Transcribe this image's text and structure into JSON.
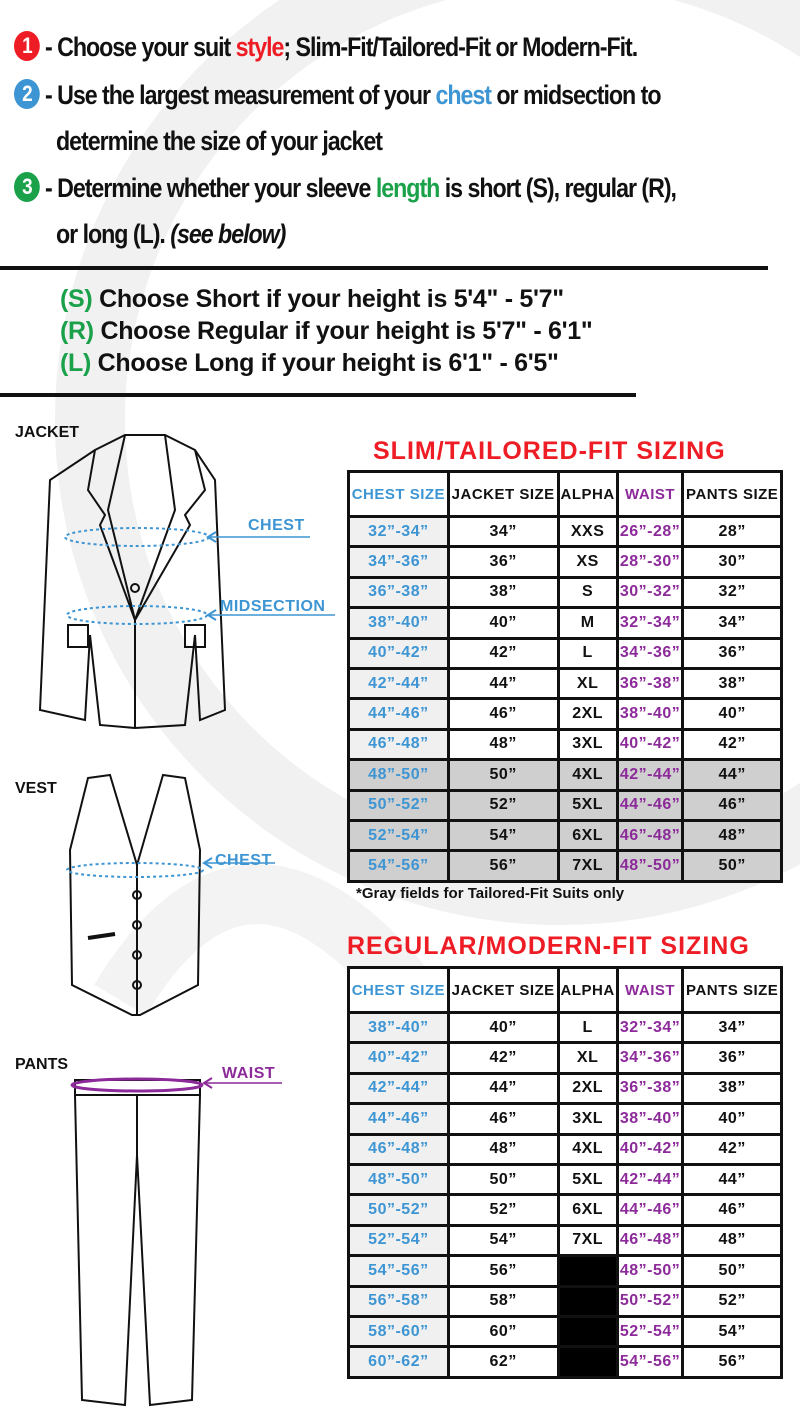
{
  "instructions": [
    {
      "num": "1",
      "color": "#ee1c24",
      "before": "- Choose your suit ",
      "highlight": "style",
      "after": "; Slim-Fit/Tailored-Fit or Modern-Fit.",
      "highlight_color": "#ee1c24"
    },
    {
      "num": "2",
      "color": "#3d95d3",
      "before": "- Use the largest measurement of your ",
      "highlight": "chest",
      "after": " or midsection to",
      "line2": "determine the size of your jacket",
      "highlight_color": "#3d95d3"
    },
    {
      "num": "3",
      "color": "#1aa14a",
      "before": "- Determine whether your sleeve ",
      "highlight": "length",
      "after": " is short (S), regular (R),",
      "line2": "or long (L). ",
      "line2_italic": "(see below)",
      "highlight_color": "#1aa14a"
    }
  ],
  "heights": [
    {
      "code": "(S)",
      "text": " Choose Short if your height is 5'4\" - 5'7\""
    },
    {
      "code": "(R)",
      "text": " Choose Regular if your height is  5'7\" - 6'1\""
    },
    {
      "code": "(L)",
      "text": " Choose Long if your height is  6'1\" - 6'5\""
    }
  ],
  "garments": {
    "jacket": "JACKET",
    "vest": "VEST",
    "pants": "PANTS",
    "chest": "CHEST",
    "midsection": "MIDSECTION",
    "vest_chest": "CHEST",
    "waist": "WAIST"
  },
  "headers": [
    "CHEST SIZE",
    "JACKET SIZE",
    "ALPHA",
    "WAIST",
    "PANTS SIZE"
  ],
  "slim": {
    "title": "SLIM/TAILORED-FIT SIZING",
    "rows": [
      [
        "32”-34”",
        "34”",
        "XXS",
        "26”-28”",
        "28”"
      ],
      [
        "34”-36”",
        "36”",
        "XS",
        "28”-30”",
        "30”"
      ],
      [
        "36”-38”",
        "38”",
        "S",
        "30”-32”",
        "32”"
      ],
      [
        "38”-40”",
        "40”",
        "M",
        "32”-34”",
        "34”"
      ],
      [
        "40”-42”",
        "42”",
        "L",
        "34”-36”",
        "36”"
      ],
      [
        "42”-44”",
        "44”",
        "XL",
        "36”-38”",
        "38”"
      ],
      [
        "44”-46”",
        "46”",
        "2XL",
        "38”-40”",
        "40”"
      ],
      [
        "46”-48”",
        "48”",
        "3XL",
        "40”-42”",
        "42”"
      ],
      [
        "48”-50”",
        "50”",
        "4XL",
        "42”-44”",
        "44”"
      ],
      [
        "50”-52”",
        "52”",
        "5XL",
        "44”-46”",
        "46”"
      ],
      [
        "52”-54”",
        "54”",
        "6XL",
        "46”-48”",
        "48”"
      ],
      [
        "54”-56”",
        "56”",
        "7XL",
        "48”-50”",
        "50”"
      ]
    ],
    "gray_from_row": 8,
    "note": "*Gray fields for Tailored-Fit Suits only"
  },
  "regular": {
    "title": "REGULAR/MODERN-FIT SIZING",
    "rows": [
      [
        "38”-40”",
        "40”",
        "L",
        "32”-34”",
        "34”"
      ],
      [
        "40”-42”",
        "42”",
        "XL",
        "34”-36”",
        "36”"
      ],
      [
        "42”-44”",
        "44”",
        "2XL",
        "36”-38”",
        "38”"
      ],
      [
        "44”-46”",
        "46”",
        "3XL",
        "38”-40”",
        "40”"
      ],
      [
        "46”-48”",
        "48”",
        "4XL",
        "40”-42”",
        "42”"
      ],
      [
        "48”-50”",
        "50”",
        "5XL",
        "42”-44”",
        "44”"
      ],
      [
        "50”-52”",
        "52”",
        "6XL",
        "44”-46”",
        "46”"
      ],
      [
        "52”-54”",
        "54”",
        "7XL",
        "46”-48”",
        "48”"
      ],
      [
        "54”-56”",
        "56”",
        "",
        "48”-50”",
        "50”"
      ],
      [
        "56”-58”",
        "58”",
        "",
        "50”-52”",
        "52”"
      ],
      [
        "58”-60”",
        "60”",
        "",
        "52”-54”",
        "54”"
      ],
      [
        "60”-62”",
        "62”",
        "",
        "54”-56”",
        "56”"
      ]
    ]
  }
}
